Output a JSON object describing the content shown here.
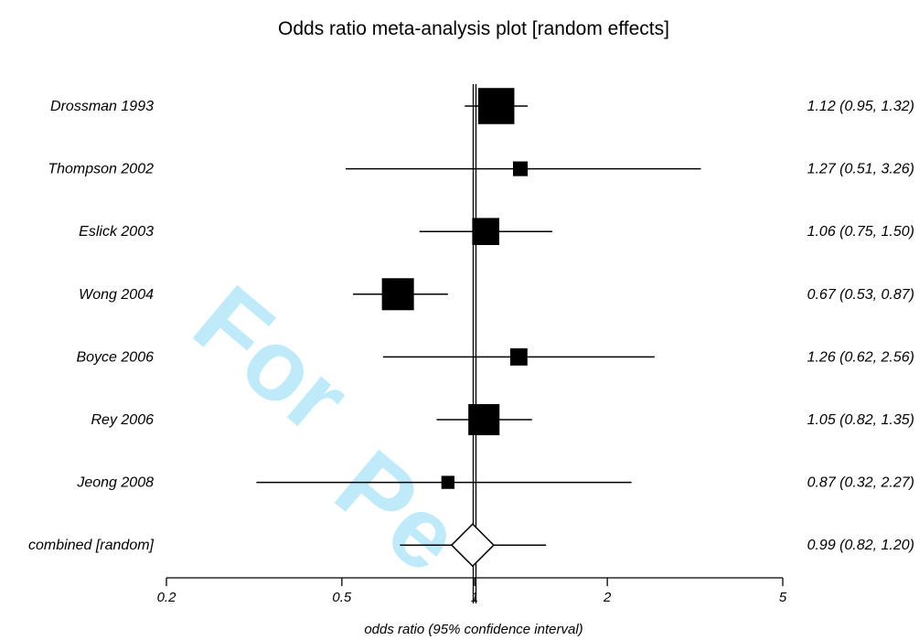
{
  "chart_data": {
    "type": "forest",
    "title": "Odds ratio meta-analysis plot [random effects]",
    "xlabel": "odds ratio (95% confidence interval)",
    "x_scale": "log",
    "xlim": [
      0.2,
      5
    ],
    "x_ticks": [
      {
        "value": 0.2,
        "label": "0.2"
      },
      {
        "value": 0.5,
        "label": "0.5"
      },
      {
        "value": 1,
        "label": "1"
      },
      {
        "value": 2,
        "label": "2"
      },
      {
        "value": 5,
        "label": "5"
      }
    ],
    "studies": [
      {
        "name": "Drossman 1993",
        "or": 1.12,
        "lower": 0.95,
        "upper": 1.32,
        "weight": 3.5,
        "label": "1.12 (0.95, 1.32)"
      },
      {
        "name": "Thompson 2002",
        "or": 1.27,
        "lower": 0.51,
        "upper": 3.26,
        "weight": 0.9,
        "label": "1.27 (0.51, 3.26)"
      },
      {
        "name": "Eslick 2003",
        "or": 1.06,
        "lower": 0.75,
        "upper": 1.5,
        "weight": 2.4,
        "label": "1.06 (0.75, 1.50)"
      },
      {
        "name": "Wong 2004",
        "or": 0.67,
        "lower": 0.53,
        "upper": 0.87,
        "weight": 3.0,
        "label": "0.67 (0.53, 0.87)"
      },
      {
        "name": "Boyce 2006",
        "or": 1.26,
        "lower": 0.62,
        "upper": 2.56,
        "weight": 1.2,
        "label": "1.26 (0.62, 2.56)"
      },
      {
        "name": "Rey 2006",
        "or": 1.05,
        "lower": 0.82,
        "upper": 1.35,
        "weight": 2.9,
        "label": "1.05 (0.82, 1.35)"
      },
      {
        "name": "Jeong 2008",
        "or": 0.87,
        "lower": 0.32,
        "upper": 2.27,
        "weight": 0.7,
        "label": "0.87 (0.32, 2.27)"
      }
    ],
    "combined": {
      "name": "combined [random]",
      "or": 0.99,
      "lower": 0.82,
      "upper": 1.2,
      "label": "0.99 (0.82, 1.20)"
    },
    "reference_line": 1,
    "grid": false,
    "legend": "none"
  },
  "watermark": {
    "line1": "For",
    "line2": "Pe"
  },
  "colors": {
    "ink": "#000000",
    "watermark": "#00aeef"
  }
}
